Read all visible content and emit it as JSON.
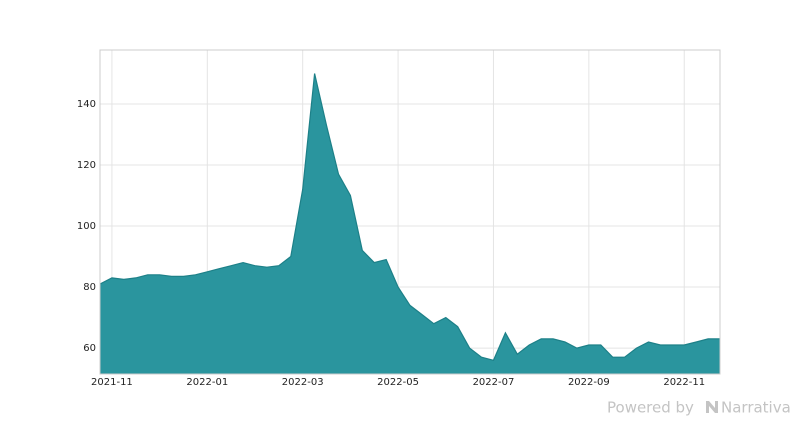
{
  "chart_data": {
    "type": "area",
    "color": "#2a959e",
    "line_color": "#1d8088",
    "grid": true,
    "categories": [
      null,
      "2021-11",
      null,
      null,
      null,
      null,
      null,
      null,
      null,
      "2022-01",
      null,
      null,
      null,
      null,
      null,
      null,
      null,
      "2022-03",
      null,
      null,
      null,
      null,
      null,
      null,
      null,
      "2022-05",
      null,
      null,
      null,
      null,
      null,
      null,
      null,
      "2022-07",
      null,
      null,
      null,
      null,
      null,
      null,
      null,
      "2022-09",
      null,
      null,
      null,
      null,
      null,
      null,
      null,
      "2022-11",
      null,
      null,
      null
    ],
    "values": [
      81,
      83,
      82.5,
      83,
      84,
      84,
      83.5,
      83.5,
      84,
      85,
      86,
      87,
      88,
      87,
      86.5,
      87,
      90,
      112,
      150,
      133,
      117,
      110,
      92,
      88,
      89,
      80,
      74,
      71,
      68,
      70,
      67,
      60,
      57,
      56,
      65,
      58,
      61,
      63,
      63,
      62,
      60,
      61,
      61,
      57,
      57,
      60,
      62,
      61,
      61,
      61,
      62,
      63,
      63
    ],
    "ylim": [
      51.5,
      157.7
    ],
    "yticks": [
      60,
      80,
      100,
      120,
      140
    ]
  },
  "footer": {
    "text": "Powered by",
    "brand": "Narrativa"
  }
}
